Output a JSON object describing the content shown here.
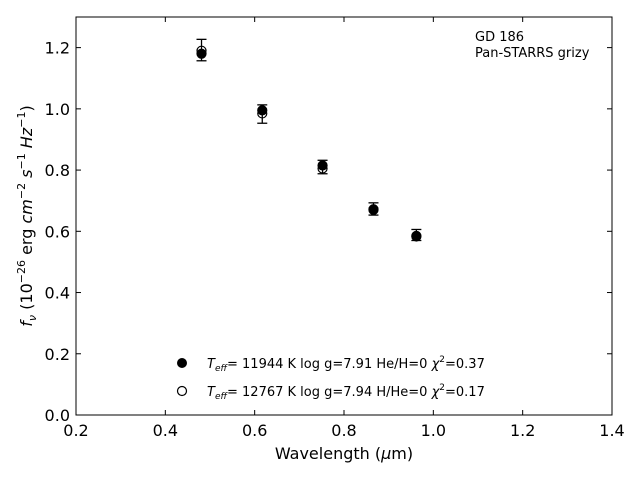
{
  "chart_data": {
    "type": "scatter",
    "title": "",
    "xlabel": "Wavelength (μm)",
    "ylabel": "fν (10⁻²⁶ erg cm⁻² s⁻¹ Hz⁻¹)",
    "xlim": [
      0.2,
      1.4
    ],
    "ylim": [
      0.0,
      1.3
    ],
    "xticks": [
      "0.2",
      "0.4",
      "0.6",
      "0.8",
      "1.0",
      "1.2",
      "1.4"
    ],
    "yticks": [
      "0.0",
      "0.2",
      "0.4",
      "0.6",
      "0.8",
      "1.0",
      "1.2"
    ],
    "grid": false,
    "legend_position": "bottom-center",
    "annotation": [
      "GD 186",
      "Pan-STARRS grizy"
    ],
    "observed": {
      "x": [
        0.481,
        0.617,
        0.752,
        0.866,
        0.962
      ],
      "y": [
        1.192,
        0.983,
        0.81,
        0.673,
        0.588
      ],
      "err": [
        0.035,
        0.03,
        0.022,
        0.02,
        0.018
      ]
    },
    "series": [
      {
        "name": "T_eff= 11944 K  log g=7.91  He/H=0  χ²=0.37",
        "marker": "filled-circle",
        "x": [
          0.481,
          0.617,
          0.752,
          0.866,
          0.962
        ],
        "y": [
          1.18,
          0.995,
          0.815,
          0.672,
          0.585
        ]
      },
      {
        "name": "T_eff= 12767 K  log g=7.94  H/He=0  χ²=0.17",
        "marker": "open-circle",
        "x": [
          0.481,
          0.617,
          0.752,
          0.866,
          0.962
        ],
        "y": [
          1.19,
          0.985,
          0.805,
          0.67,
          0.583
        ]
      }
    ]
  },
  "legend": {
    "entries": [
      {
        "teff_prefix": "T",
        "teff_sub": "eff",
        "rest": "= 11944 K  log g=7.91  He/H=0  ",
        "chi": "χ",
        "chi_sup": "2",
        "chi_val": "=0.37"
      },
      {
        "teff_prefix": "T",
        "teff_sub": "eff",
        "rest": "= 12767 K  log g=7.94  H/He=0  ",
        "chi": "χ",
        "chi_sup": "2",
        "chi_val": "=0.17"
      }
    ]
  },
  "axis_text": {
    "x_main": "Wavelength (",
    "x_mu": "μ",
    "x_tail": "m)",
    "y_f": "f",
    "y_nu": "ν",
    "y_open": " (10",
    "y_exp1": "−26",
    "y_erg": " erg ",
    "y_cm": "cm",
    "y_exp2": "−2",
    "y_s": " s",
    "y_exp3": "−1",
    "y_hz": " Hz",
    "y_exp4": "−1",
    "y_close": ")"
  }
}
